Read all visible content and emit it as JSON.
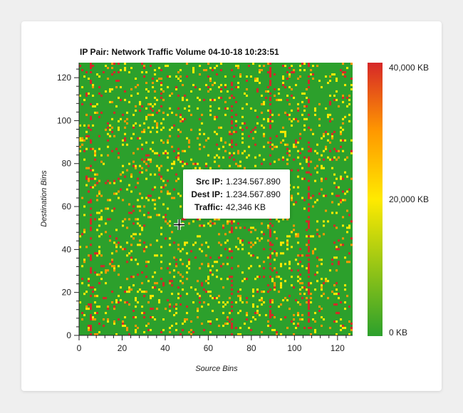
{
  "chart_data": {
    "type": "heatmap",
    "title": "IP Pair: Network Traffic Volume 04-10-18 10:23:51",
    "xlabel": "Source Bins",
    "ylabel": "Destination Bins",
    "xlim": [
      0,
      127
    ],
    "ylim": [
      0,
      127
    ],
    "x_ticks": [
      0,
      20,
      40,
      60,
      80,
      100,
      120
    ],
    "y_ticks": [
      0,
      20,
      40,
      60,
      80,
      100,
      120
    ],
    "bins": 128,
    "colorscale": {
      "min_label": "0 KB",
      "mid_label": "20,000 KB",
      "max_label": "40,000 KB",
      "min": 0,
      "mid": 20000,
      "max": 40000,
      "colors": [
        "#2ca02c",
        "#ffea00",
        "#ff9800",
        "#d62728"
      ]
    },
    "background_value_color": "#2ca02c",
    "hot_source_columns": [
      5,
      71,
      89,
      107
    ],
    "tooltip": {
      "src_label": "Src IP:",
      "src_value": "1.234.567.890",
      "dest_label": "Dest IP:",
      "dest_value": "1.234.567.890",
      "traffic_label": "Traffic:",
      "traffic_value": "42,346 KB"
    }
  }
}
